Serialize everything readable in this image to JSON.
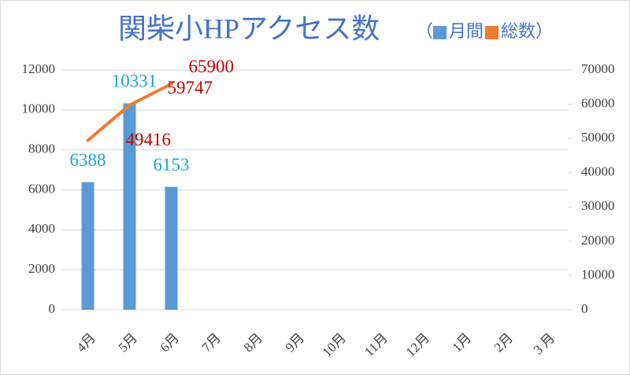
{
  "chart_data": {
    "type": "bar",
    "title": "関柴小HPアクセス数",
    "legend_open": "（",
    "legend_close": "）",
    "categories": [
      "4月",
      "5月",
      "6月",
      "7月",
      "8月",
      "9月",
      "10月",
      "11月",
      "12月",
      "1月",
      "2月",
      "3 月"
    ],
    "series": [
      {
        "name": "月間",
        "type": "bar",
        "color": "#5b9bd5",
        "label_color": "#1fa3d6",
        "values": [
          6388,
          10331,
          6153,
          null,
          null,
          null,
          null,
          null,
          null,
          null,
          null,
          null
        ]
      },
      {
        "name": "総数",
        "type": "line",
        "axis": "y2",
        "color": "#ed7d31",
        "label_color": "#c00000",
        "values": [
          49416,
          59747,
          65900,
          null,
          null,
          null,
          null,
          null,
          null,
          null,
          null,
          null
        ]
      }
    ],
    "ylim": [
      0,
      12000
    ],
    "yticks": [
      0,
      2000,
      4000,
      6000,
      8000,
      10000,
      12000
    ],
    "y2lim": [
      0,
      70000
    ],
    "y2ticks": [
      0,
      10000,
      20000,
      30000,
      40000,
      50000,
      60000,
      70000
    ],
    "grid": true
  }
}
